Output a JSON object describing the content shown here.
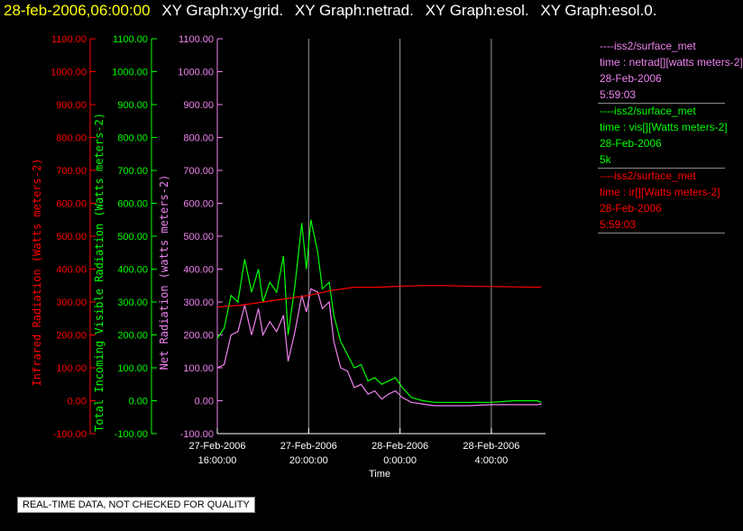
{
  "header": {
    "timestamp": "28-feb-2006,06:00:00",
    "graphs": [
      "XY Graph:xy-grid.",
      "XY Graph:netrad.",
      "XY Graph:esol.",
      "XY Graph:esol.0."
    ]
  },
  "footer_note": "REAL-TIME DATA, NOT CHECKED FOR QUALITY",
  "legend": [
    {
      "lines": [
        "----iss2/surface_met",
        "time : netrad[][watts meters-2]",
        "28-Feb-2006",
        "5:59:03"
      ],
      "color": "#ee82ee"
    },
    {
      "lines": [
        "----iss2/surface_met",
        "time : vis[][Watts meters-2]",
        "28-Feb-2006",
        "5k"
      ],
      "color": "#00ff00"
    },
    {
      "lines": [
        "----iss2/surface_met",
        "time : ir[][Watts meters-2]",
        "28-Feb-2006",
        "5:59:03"
      ],
      "color": "#ff0000"
    }
  ],
  "chart_data": {
    "type": "line",
    "xlabel": "Time",
    "x_ticks": [
      {
        "hours": 16,
        "date": "27-Feb-2006",
        "time": "16:00:00"
      },
      {
        "hours": 20,
        "date": "27-Feb-2006",
        "time": "20:00:00"
      },
      {
        "hours": 24,
        "date": "28-Feb-2006",
        "time": "0:00:00"
      },
      {
        "hours": 28,
        "date": "28-Feb-2006",
        "time": "4:00:00"
      }
    ],
    "xlim_hours": [
      16,
      30.4
    ],
    "ylim": [
      -100,
      1100
    ],
    "y_ticks": [
      "-100.00",
      "0.00",
      "100.00",
      "200.00",
      "300.00",
      "400.00",
      "500.00",
      "600.00",
      "700.00",
      "800.00",
      "900.00",
      "1000.00",
      "1100.00"
    ],
    "axes": [
      {
        "label": "Infrared Radiation (Watts meters-2)",
        "color": "#ff0000"
      },
      {
        "label": "Total Incoming Visible Radiation (Watts meters-2)",
        "color": "#00ff00"
      },
      {
        "label": "Net Radiation (watts meters-2)",
        "color": "#ee82ee"
      }
    ],
    "grid": "vertical at x ticks",
    "series": [
      {
        "color": "#ee82ee",
        "x": [
          16.0,
          16.3,
          16.6,
          16.9,
          17.2,
          17.5,
          17.8,
          18.0,
          18.3,
          18.6,
          18.9,
          19.1,
          19.4,
          19.7,
          19.9,
          20.1,
          20.4,
          20.6,
          20.9,
          21.1,
          21.4,
          21.7,
          22.0,
          22.3,
          22.6,
          22.9,
          23.2,
          23.5,
          23.8,
          24.1,
          24.5,
          25.0,
          25.5,
          26.0,
          27.0,
          28.0,
          29.0,
          30.0,
          30.2
        ],
        "y": [
          100,
          110,
          200,
          210,
          290,
          200,
          280,
          200,
          240,
          210,
          260,
          120,
          210,
          320,
          270,
          340,
          330,
          280,
          300,
          180,
          100,
          90,
          40,
          50,
          20,
          30,
          5,
          20,
          30,
          10,
          -5,
          -10,
          -15,
          -15,
          -15,
          -12,
          -12,
          -12,
          -10
        ]
      },
      {
        "color": "#00ff00",
        "x": [
          16.0,
          16.3,
          16.6,
          16.9,
          17.2,
          17.5,
          17.8,
          18.0,
          18.3,
          18.6,
          18.9,
          19.1,
          19.4,
          19.7,
          19.9,
          20.1,
          20.4,
          20.6,
          20.9,
          21.1,
          21.4,
          21.7,
          22.0,
          22.3,
          22.6,
          22.9,
          23.2,
          23.5,
          23.8,
          24.1,
          24.5,
          25.0,
          25.5,
          26.0,
          27.0,
          28.0,
          29.0,
          30.0,
          30.2
        ],
        "y": [
          190,
          220,
          320,
          300,
          430,
          330,
          400,
          300,
          360,
          330,
          440,
          200,
          350,
          540,
          400,
          550,
          450,
          340,
          360,
          260,
          180,
          140,
          100,
          110,
          60,
          70,
          50,
          60,
          70,
          40,
          10,
          0,
          -5,
          -5,
          -5,
          -5,
          0,
          0,
          -5
        ]
      },
      {
        "color": "#ff0000",
        "x": [
          16.0,
          17.0,
          18.0,
          19.0,
          20.0,
          21.0,
          22.0,
          23.0,
          24.0,
          25.0,
          26.0,
          27.0,
          28.0,
          29.0,
          30.0,
          30.2
        ],
        "y": [
          285,
          290,
          300,
          310,
          320,
          335,
          345,
          345,
          348,
          350,
          350,
          348,
          347,
          346,
          345,
          346
        ]
      }
    ]
  }
}
